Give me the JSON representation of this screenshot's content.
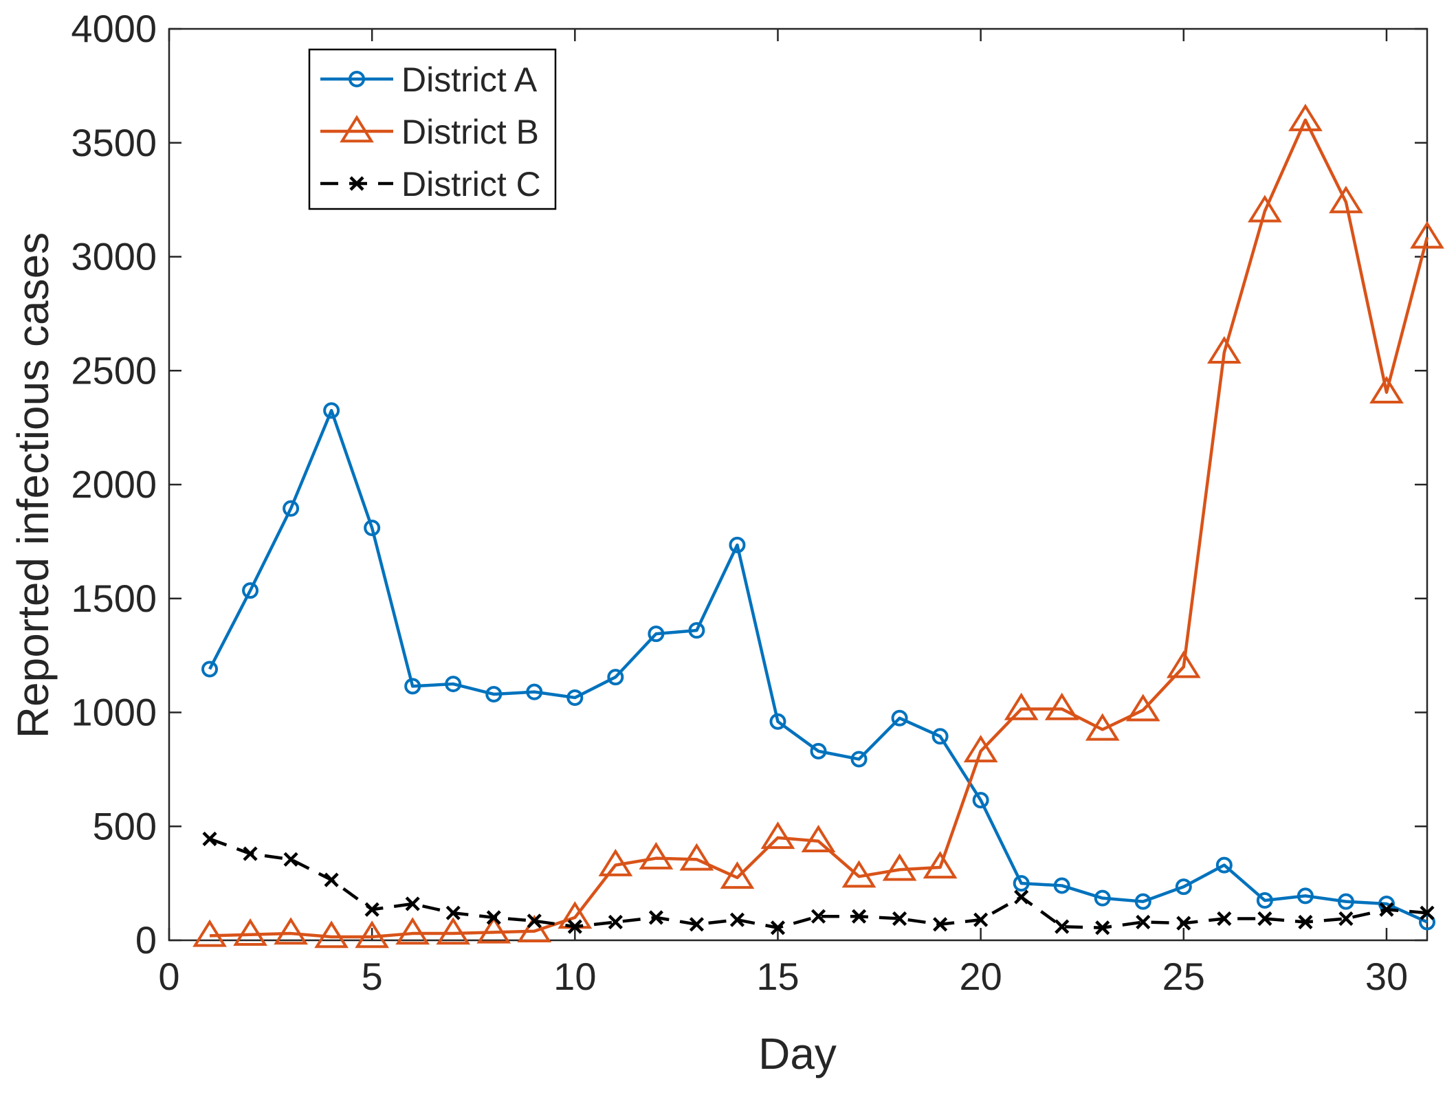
{
  "chart_data": {
    "type": "line",
    "title": "",
    "xlabel": "Day",
    "ylabel": "Reported infectious cases",
    "xlim": [
      0,
      31
    ],
    "ylim": [
      0,
      4000
    ],
    "xticks": [
      0,
      5,
      10,
      15,
      20,
      25,
      30
    ],
    "yticks": [
      0,
      500,
      1000,
      1500,
      2000,
      2500,
      3000,
      3500,
      4000
    ],
    "grid": false,
    "legend_position": "top-left",
    "x": [
      1,
      2,
      3,
      4,
      5,
      6,
      7,
      8,
      9,
      10,
      11,
      12,
      13,
      14,
      15,
      16,
      17,
      18,
      19,
      20,
      21,
      22,
      23,
      24,
      25,
      26,
      27,
      28,
      29,
      30,
      31
    ],
    "series": [
      {
        "name": "District A",
        "color": "#0072BD",
        "marker": "circle",
        "line_style": "solid",
        "values": [
          1190,
          1535,
          1895,
          2325,
          1810,
          1115,
          1125,
          1080,
          1090,
          1065,
          1155,
          1345,
          1360,
          1735,
          960,
          830,
          795,
          975,
          895,
          615,
          250,
          240,
          185,
          170,
          235,
          330,
          175,
          195,
          170,
          160,
          80
        ]
      },
      {
        "name": "District B",
        "color": "#D95319",
        "marker": "triangle",
        "line_style": "solid",
        "values": [
          20,
          25,
          30,
          15,
          15,
          30,
          30,
          35,
          40,
          100,
          330,
          360,
          355,
          275,
          450,
          435,
          280,
          310,
          320,
          830,
          1015,
          1015,
          925,
          1010,
          1200,
          2580,
          3200,
          3600,
          3240,
          2405,
          3085
        ]
      },
      {
        "name": "District C",
        "color": "#000000",
        "marker": "x",
        "line_style": "dashed",
        "values": [
          445,
          380,
          355,
          265,
          135,
          160,
          120,
          100,
          85,
          60,
          80,
          100,
          70,
          90,
          55,
          105,
          105,
          95,
          70,
          90,
          190,
          60,
          55,
          80,
          75,
          95,
          95,
          80,
          95,
          135,
          120
        ]
      }
    ]
  }
}
